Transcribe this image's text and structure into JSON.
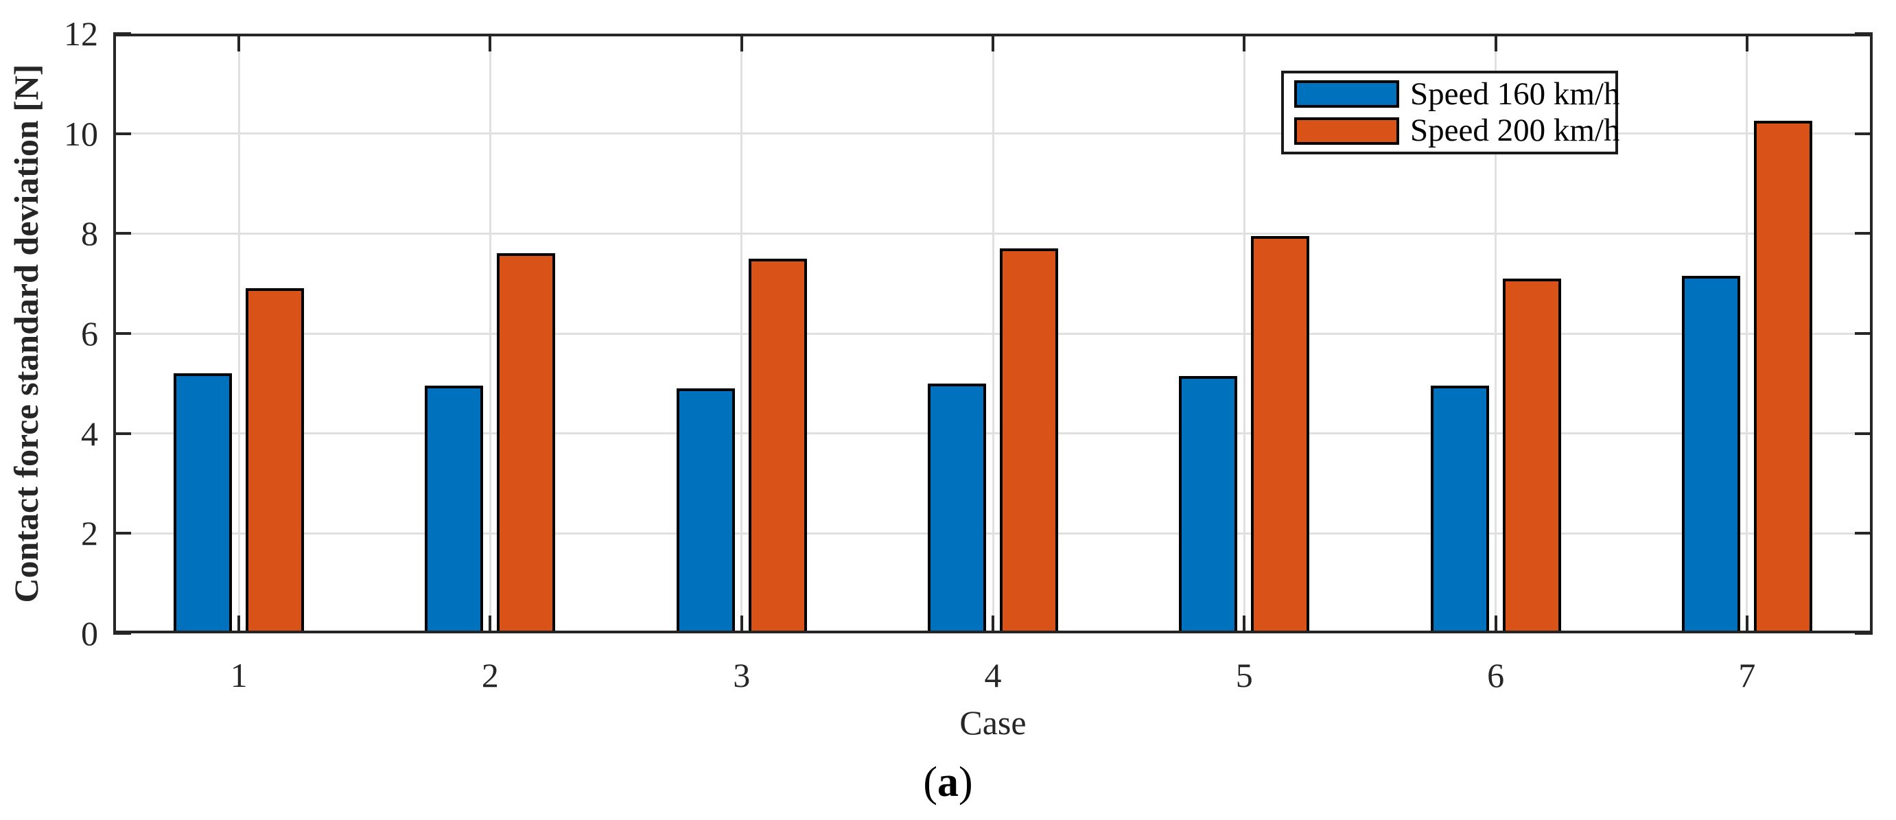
{
  "figure": {
    "caption_prefix": "(",
    "caption_letter": "a",
    "caption_suffix": ")"
  },
  "chart_data": {
    "type": "bar",
    "title": "",
    "xlabel": "Case",
    "ylabel": "Contact force standard deviation [N]",
    "categories": [
      "1",
      "2",
      "3",
      "4",
      "5",
      "6",
      "7"
    ],
    "series": [
      {
        "name": "Speed 160 km/h",
        "color": "#0072BD",
        "values": [
          5.2,
          4.95,
          4.9,
          5.0,
          5.15,
          4.95,
          7.15
        ]
      },
      {
        "name": "Speed 200 km/h",
        "color": "#D95319",
        "values": [
          6.9,
          7.6,
          7.5,
          7.7,
          7.95,
          7.1,
          10.25
        ]
      }
    ],
    "ylim": [
      0,
      12
    ],
    "yticks": [
      0,
      2,
      4,
      6,
      8,
      10,
      12
    ],
    "grid": true,
    "legend_position": "upper-right-inside",
    "axis_color": "#262626",
    "grid_color": "#e0e0e0",
    "bar_edge_color": "#000000",
    "background_color": "#ffffff"
  }
}
